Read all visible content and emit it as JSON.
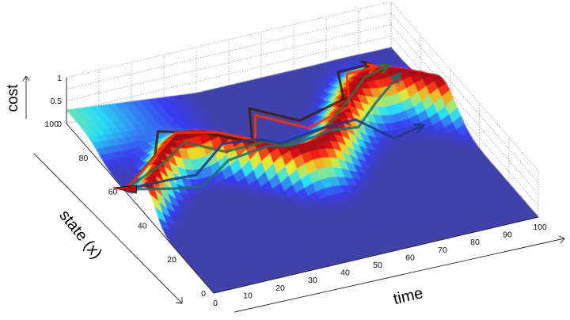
{
  "chart_data": {
    "type": "surface",
    "title": "",
    "xlabel": "time",
    "ylabel": "state (x)",
    "zlabel": "cost",
    "xlim": [
      0,
      100
    ],
    "ylim": [
      0,
      100
    ],
    "zlim": [
      0,
      1
    ],
    "x_ticks": [
      "0",
      "10",
      "20",
      "30",
      "40",
      "50",
      "60",
      "70",
      "80",
      "90",
      "100"
    ],
    "y_ticks": [
      "0",
      "20",
      "40",
      "60",
      "80",
      "100"
    ],
    "z_ticks": [
      "0",
      "0.5",
      "1"
    ],
    "grid": true,
    "colormap": "jet",
    "series": [
      {
        "color": "#3a2010",
        "x": [
          0,
          10,
          20,
          30,
          40,
          50,
          60,
          70,
          80,
          90
        ],
        "y": [
          60,
          62,
          82,
          72,
          62,
          86,
          74,
          66,
          92,
          92
        ]
      },
      {
        "color": "#ff3000",
        "x": [
          0,
          10,
          20,
          30,
          40,
          50,
          60,
          70,
          80,
          90
        ],
        "y": [
          60,
          61,
          70,
          64,
          60,
          82,
          68,
          62,
          86,
          88
        ]
      },
      {
        "color": "#3d6a3d",
        "x": [
          0,
          10,
          20,
          30,
          40,
          50,
          60,
          70,
          80,
          90
        ],
        "y": [
          60,
          56,
          64,
          58,
          54,
          62,
          56,
          64,
          74,
          80
        ]
      },
      {
        "color": "#1e6e6e",
        "x": [
          0,
          10,
          20,
          30,
          40,
          50,
          60,
          70,
          80,
          90
        ],
        "y": [
          60,
          50,
          52,
          56,
          52,
          58,
          52,
          56,
          66,
          72
        ]
      },
      {
        "color": "#203a8a",
        "x": [
          0,
          10,
          20,
          30,
          40,
          50,
          60,
          70,
          80,
          90
        ],
        "y": [
          60,
          52,
          56,
          60,
          58,
          64,
          60,
          58,
          54,
          56
        ]
      }
    ]
  }
}
